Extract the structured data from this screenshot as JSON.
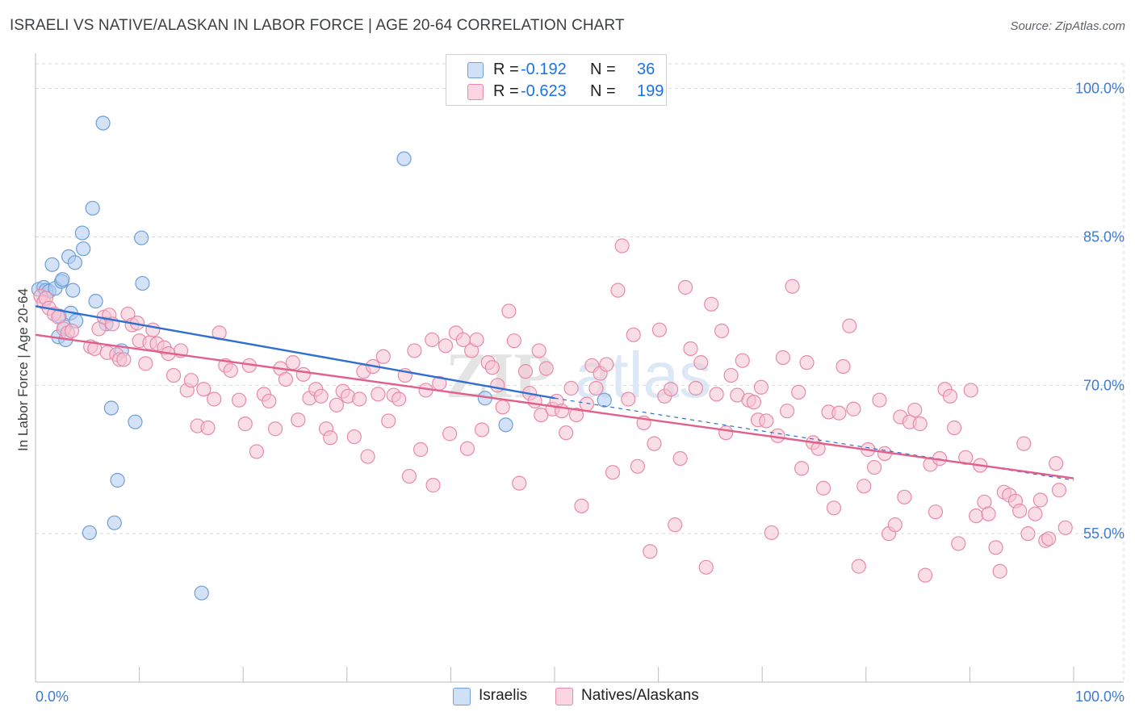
{
  "header": {
    "title": "ISRAELI VS NATIVE/ALASKAN IN LABOR FORCE | AGE 20-64 CORRELATION CHART",
    "source": "Source: ZipAtlas.com"
  },
  "colors": {
    "israelis_fill": "#aecbf0",
    "israelis_stroke": "#6e9fd8",
    "israelis_line": "#2f6fcf",
    "natives_fill": "#f6c2d2",
    "natives_stroke": "#e88aa9",
    "natives_line": "#e0608a",
    "axis_text": "#3d7bd1",
    "grid": "#d9d9d9"
  },
  "legend": {
    "r_label": "R =",
    "n_label": "N =",
    "rows": [
      {
        "series": "israelis",
        "r": "-0.192",
        "n": "36"
      },
      {
        "series": "natives",
        "r": "-0.623",
        "n": "199"
      }
    ]
  },
  "bottom_legend": [
    {
      "series": "israelis",
      "label": "Israelis"
    },
    {
      "series": "natives",
      "label": "Natives/Alaskans"
    }
  ],
  "watermark": {
    "zip": "ZIP",
    "atlas": "atlas"
  },
  "chart_data": {
    "type": "scatter",
    "title": "ISRAELI VS NATIVE/ALASKAN IN LABOR FORCE | AGE 20-64 CORRELATION CHART",
    "xlabel": "",
    "ylabel": "In Labor Force | Age 20-64",
    "xlim": [
      0,
      100
    ],
    "ylim": [
      40,
      102.5
    ],
    "x_tick_labels": [
      "0.0%",
      "100.0%"
    ],
    "y_ticks": [
      55,
      70,
      85,
      100
    ],
    "y_tick_labels": [
      "55.0%",
      "70.0%",
      "85.0%",
      "100.0%"
    ],
    "grid": true,
    "series": [
      {
        "name": "Israelis",
        "key": "israelis",
        "r": -0.192,
        "n": 36,
        "trend": {
          "x0": 0,
          "y0": 78.0,
          "x1": 50,
          "y1": 68.7,
          "dash_to_x": 100,
          "dash_to_y": 60.4
        },
        "points": [
          [
            0.3,
            79.7
          ],
          [
            0.8,
            79.9
          ],
          [
            1.0,
            79.6
          ],
          [
            1.3,
            79.5
          ],
          [
            1.6,
            82.2
          ],
          [
            1.9,
            79.8
          ],
          [
            2.2,
            74.9
          ],
          [
            2.3,
            77.0
          ],
          [
            2.5,
            80.5
          ],
          [
            2.6,
            80.7
          ],
          [
            2.8,
            75.9
          ],
          [
            2.9,
            74.6
          ],
          [
            3.2,
            83.0
          ],
          [
            3.4,
            77.3
          ],
          [
            3.6,
            79.6
          ],
          [
            3.8,
            82.4
          ],
          [
            3.9,
            76.5
          ],
          [
            4.5,
            85.4
          ],
          [
            4.6,
            83.8
          ],
          [
            5.2,
            55.1
          ],
          [
            5.5,
            87.9
          ],
          [
            5.8,
            78.5
          ],
          [
            6.5,
            96.5
          ],
          [
            6.8,
            76.2
          ],
          [
            7.3,
            67.7
          ],
          [
            7.6,
            56.1
          ],
          [
            7.9,
            60.4
          ],
          [
            8.3,
            73.5
          ],
          [
            9.6,
            66.3
          ],
          [
            10.2,
            84.9
          ],
          [
            10.3,
            80.3
          ],
          [
            16.0,
            49.0
          ],
          [
            35.5,
            92.9
          ],
          [
            43.3,
            68.7
          ],
          [
            45.3,
            66.0
          ],
          [
            54.8,
            68.5
          ]
        ]
      },
      {
        "name": "Natives/Alaskans",
        "key": "natives",
        "r": -0.623,
        "n": 199,
        "trend": {
          "x0": 0,
          "y0": 75.1,
          "x1": 100,
          "y1": 60.6
        },
        "points": [
          [
            0.5,
            79.0
          ],
          [
            0.8,
            78.4
          ],
          [
            1.0,
            78.8
          ],
          [
            1.3,
            77.8
          ],
          [
            1.8,
            77.2
          ],
          [
            2.2,
            76.9
          ],
          [
            2.7,
            75.7
          ],
          [
            3.1,
            75.3
          ],
          [
            3.5,
            75.5
          ],
          [
            5.3,
            73.9
          ],
          [
            5.7,
            73.7
          ],
          [
            6.1,
            75.7
          ],
          [
            6.6,
            76.9
          ],
          [
            6.9,
            73.3
          ],
          [
            7.1,
            77.1
          ],
          [
            7.4,
            76.2
          ],
          [
            7.8,
            73.1
          ],
          [
            8.1,
            72.6
          ],
          [
            8.5,
            72.6
          ],
          [
            8.9,
            77.2
          ],
          [
            9.3,
            76.1
          ],
          [
            9.8,
            76.3
          ],
          [
            10.0,
            74.5
          ],
          [
            10.6,
            72.2
          ],
          [
            11.0,
            74.3
          ],
          [
            11.3,
            75.6
          ],
          [
            11.7,
            74.2
          ],
          [
            12.4,
            73.8
          ],
          [
            12.8,
            73.2
          ],
          [
            13.3,
            71.0
          ],
          [
            14.0,
            73.5
          ],
          [
            14.6,
            69.5
          ],
          [
            15.0,
            70.5
          ],
          [
            15.6,
            65.9
          ],
          [
            16.2,
            69.6
          ],
          [
            16.6,
            65.7
          ],
          [
            17.2,
            68.6
          ],
          [
            17.7,
            75.3
          ],
          [
            18.3,
            72.0
          ],
          [
            18.8,
            71.5
          ],
          [
            19.6,
            68.5
          ],
          [
            20.2,
            66.1
          ],
          [
            20.6,
            72.0
          ],
          [
            21.3,
            63.3
          ],
          [
            22.0,
            69.1
          ],
          [
            22.5,
            68.4
          ],
          [
            23.1,
            65.6
          ],
          [
            23.6,
            71.7
          ],
          [
            24.1,
            70.6
          ],
          [
            24.8,
            72.3
          ],
          [
            25.3,
            66.5
          ],
          [
            25.8,
            71.1
          ],
          [
            26.4,
            68.7
          ],
          [
            27.0,
            69.6
          ],
          [
            27.5,
            68.9
          ],
          [
            28.0,
            65.6
          ],
          [
            28.4,
            64.7
          ],
          [
            29.0,
            68.0
          ],
          [
            29.6,
            69.4
          ],
          [
            30.1,
            68.9
          ],
          [
            30.7,
            64.8
          ],
          [
            31.2,
            68.6
          ],
          [
            31.6,
            71.4
          ],
          [
            32.0,
            62.8
          ],
          [
            32.5,
            71.9
          ],
          [
            33.0,
            69.1
          ],
          [
            33.5,
            72.9
          ],
          [
            34.0,
            66.4
          ],
          [
            34.5,
            69.0
          ],
          [
            35.0,
            68.6
          ],
          [
            35.6,
            71.0
          ],
          [
            36.0,
            60.8
          ],
          [
            36.5,
            73.5
          ],
          [
            37.1,
            63.5
          ],
          [
            37.6,
            69.5
          ],
          [
            38.2,
            74.6
          ],
          [
            38.3,
            59.9
          ],
          [
            38.9,
            70.2
          ],
          [
            39.5,
            74.0
          ],
          [
            39.9,
            65.1
          ],
          [
            40.5,
            75.3
          ],
          [
            41.2,
            74.6
          ],
          [
            41.6,
            63.6
          ],
          [
            42.0,
            73.5
          ],
          [
            42.5,
            74.6
          ],
          [
            43.0,
            65.5
          ],
          [
            43.6,
            72.3
          ],
          [
            44.0,
            71.8
          ],
          [
            44.5,
            70.0
          ],
          [
            45.0,
            67.8
          ],
          [
            45.6,
            77.5
          ],
          [
            46.1,
            74.5
          ],
          [
            46.6,
            60.1
          ],
          [
            47.2,
            71.4
          ],
          [
            47.6,
            69.2
          ],
          [
            48.1,
            68.4
          ],
          [
            48.5,
            73.5
          ],
          [
            48.7,
            67.0
          ],
          [
            49.2,
            71.7
          ],
          [
            49.8,
            67.6
          ],
          [
            50.2,
            68.4
          ],
          [
            50.7,
            67.4
          ],
          [
            51.1,
            65.2
          ],
          [
            51.6,
            69.7
          ],
          [
            52.1,
            67.0
          ],
          [
            52.6,
            57.8
          ],
          [
            53.1,
            68.1
          ],
          [
            53.6,
            72.0
          ],
          [
            54.0,
            69.7
          ],
          [
            54.4,
            71.2
          ],
          [
            55.0,
            72.1
          ],
          [
            55.6,
            61.2
          ],
          [
            56.1,
            79.6
          ],
          [
            56.5,
            84.1
          ],
          [
            57.1,
            68.6
          ],
          [
            57.6,
            75.1
          ],
          [
            58.0,
            61.8
          ],
          [
            58.6,
            66.2
          ],
          [
            59.2,
            53.2
          ],
          [
            59.6,
            64.1
          ],
          [
            60.1,
            75.6
          ],
          [
            60.6,
            68.9
          ],
          [
            61.2,
            69.6
          ],
          [
            61.6,
            55.9
          ],
          [
            62.1,
            62.6
          ],
          [
            62.6,
            79.9
          ],
          [
            63.1,
            73.7
          ],
          [
            63.6,
            69.7
          ],
          [
            64.1,
            72.3
          ],
          [
            64.6,
            51.6
          ],
          [
            65.1,
            78.2
          ],
          [
            65.6,
            69.1
          ],
          [
            66.1,
            75.5
          ],
          [
            66.5,
            65.2
          ],
          [
            67.0,
            71.0
          ],
          [
            67.6,
            69.0
          ],
          [
            68.1,
            72.5
          ],
          [
            68.7,
            68.5
          ],
          [
            69.2,
            68.3
          ],
          [
            69.6,
            66.5
          ],
          [
            69.9,
            69.8
          ],
          [
            70.4,
            66.4
          ],
          [
            70.9,
            55.1
          ],
          [
            71.5,
            64.9
          ],
          [
            72.0,
            72.8
          ],
          [
            72.4,
            67.4
          ],
          [
            72.9,
            80.0
          ],
          [
            73.5,
            69.3
          ],
          [
            73.8,
            61.6
          ],
          [
            74.3,
            72.3
          ],
          [
            74.9,
            64.2
          ],
          [
            75.4,
            63.6
          ],
          [
            75.9,
            59.6
          ],
          [
            76.4,
            67.3
          ],
          [
            76.9,
            57.6
          ],
          [
            77.4,
            67.2
          ],
          [
            77.8,
            71.9
          ],
          [
            78.4,
            76.0
          ],
          [
            78.8,
            67.6
          ],
          [
            79.3,
            51.7
          ],
          [
            79.8,
            59.8
          ],
          [
            80.2,
            63.5
          ],
          [
            80.8,
            61.7
          ],
          [
            81.3,
            68.5
          ],
          [
            81.8,
            63.1
          ],
          [
            82.2,
            55.0
          ],
          [
            82.8,
            55.9
          ],
          [
            83.3,
            66.8
          ],
          [
            83.7,
            58.7
          ],
          [
            84.2,
            66.3
          ],
          [
            84.7,
            67.5
          ],
          [
            85.2,
            66.1
          ],
          [
            85.7,
            50.8
          ],
          [
            86.2,
            62.0
          ],
          [
            86.7,
            57.2
          ],
          [
            87.1,
            62.6
          ],
          [
            87.6,
            69.6
          ],
          [
            88.1,
            68.9
          ],
          [
            88.5,
            65.7
          ],
          [
            88.9,
            54.0
          ],
          [
            89.6,
            62.7
          ],
          [
            90.1,
            69.5
          ],
          [
            90.6,
            56.8
          ],
          [
            91.0,
            61.9
          ],
          [
            91.4,
            58.2
          ],
          [
            91.8,
            57.0
          ],
          [
            92.5,
            53.6
          ],
          [
            92.9,
            51.2
          ],
          [
            93.3,
            59.2
          ],
          [
            93.8,
            58.9
          ],
          [
            94.4,
            58.3
          ],
          [
            94.8,
            57.3
          ],
          [
            95.2,
            64.1
          ],
          [
            95.6,
            55.0
          ],
          [
            96.3,
            57.0
          ],
          [
            96.8,
            58.4
          ],
          [
            97.3,
            54.3
          ],
          [
            97.6,
            54.5
          ],
          [
            98.3,
            62.1
          ],
          [
            98.6,
            59.4
          ],
          [
            99.2,
            55.6
          ]
        ]
      }
    ]
  }
}
